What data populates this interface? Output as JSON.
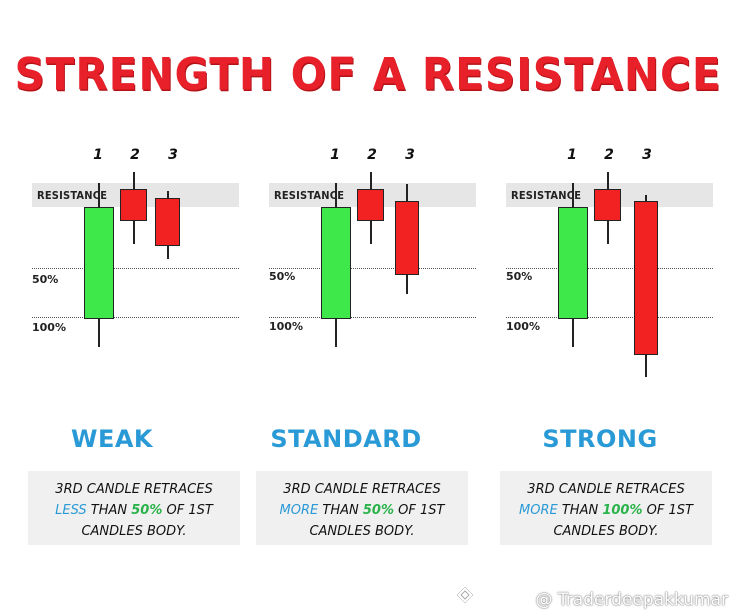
{
  "title": "STRENGTH OF A RESISTANCE",
  "candle_numbers": [
    "1",
    "2",
    "3"
  ],
  "resistance_label": "RESISTANCE",
  "level_50": "50%",
  "level_100": "100%",
  "panels": [
    {
      "strength": "WEAK",
      "line1": "3RD CANDLE RETRACES",
      "cmp": "LESS",
      "than": "THAN",
      "pct": "50%",
      "of": "OF 1ST",
      "line3": "CANDLES BODY."
    },
    {
      "strength": "STANDARD",
      "line1": "3RD CANDLE RETRACES",
      "cmp": "MORE",
      "than": "THAN",
      "pct": "50%",
      "of": "OF 1ST",
      "line3": "CANDLES BODY."
    },
    {
      "strength": "STRONG",
      "line1": "3RD CANDLE RETRACES",
      "cmp": "MORE",
      "than": "THAN",
      "pct": "100%",
      "of": "OF 1ST",
      "line3": "CANDLES BODY."
    }
  ],
  "colors": {
    "title": "#e8202a",
    "bullish": "#3ee84a",
    "bearish": "#f22222",
    "strength_text": "#2a9ad6",
    "highlight_green": "#29b34a",
    "resistance_band": "#e6e6e6"
  },
  "watermark": "@ Traderdeepakkumar"
}
